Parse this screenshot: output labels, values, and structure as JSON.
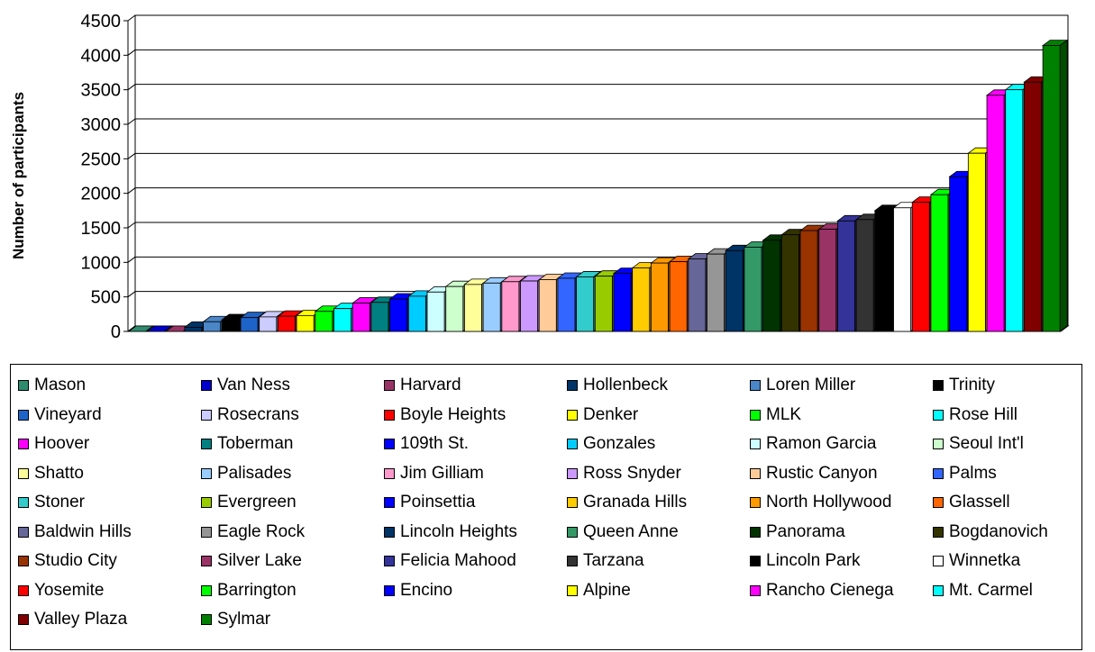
{
  "chart_data": {
    "type": "bar",
    "ylabel": "Number of participants",
    "xlabel": "",
    "ylim": [
      0,
      4500
    ],
    "yticks": [
      0,
      500,
      1000,
      1500,
      2000,
      2500,
      3000,
      3500,
      4000,
      4500
    ],
    "grid": true,
    "legend_position": "bottom",
    "series": [
      {
        "name": "Mason",
        "value": 0,
        "color": "#2E8B6E"
      },
      {
        "name": "Van Ness",
        "value": 0,
        "color": "#0000CC"
      },
      {
        "name": "Harvard",
        "value": 0,
        "color": "#993366"
      },
      {
        "name": "Hollenbeck",
        "value": 60,
        "color": "#003366"
      },
      {
        "name": "Loren Miller",
        "value": 140,
        "color": "#4A86C8"
      },
      {
        "name": "Trinity",
        "value": 170,
        "color": "#000000"
      },
      {
        "name": "Vineyard",
        "value": 200,
        "color": "#1E64C8"
      },
      {
        "name": "Rosecrans",
        "value": 210,
        "color": "#CCCCFF"
      },
      {
        "name": "Boyle Heights",
        "value": 220,
        "color": "#FF0000"
      },
      {
        "name": "Denker",
        "value": 230,
        "color": "#FFFF00"
      },
      {
        "name": "MLK",
        "value": 290,
        "color": "#00FF00"
      },
      {
        "name": "Rose Hill",
        "value": 330,
        "color": "#00FFFF"
      },
      {
        "name": "Hoover",
        "value": 410,
        "color": "#FF00FF"
      },
      {
        "name": "Toberman",
        "value": 420,
        "color": "#008080"
      },
      {
        "name": "109th St.",
        "value": 470,
        "color": "#0000FF"
      },
      {
        "name": "Gonzales",
        "value": 510,
        "color": "#00CCFF"
      },
      {
        "name": "Ramon Garcia",
        "value": 570,
        "color": "#CCFFFF"
      },
      {
        "name": "Seoul Int'l",
        "value": 650,
        "color": "#CCFFCC"
      },
      {
        "name": "Shatto",
        "value": 680,
        "color": "#FFFF99"
      },
      {
        "name": "Palisades",
        "value": 700,
        "color": "#99CCFF"
      },
      {
        "name": "Jim Gilliam",
        "value": 720,
        "color": "#FF99CC"
      },
      {
        "name": "Ross Snyder",
        "value": 730,
        "color": "#CC99FF"
      },
      {
        "name": "Rustic Canyon",
        "value": 750,
        "color": "#FFCC99"
      },
      {
        "name": "Palms",
        "value": 770,
        "color": "#3366FF"
      },
      {
        "name": "Stoner",
        "value": 790,
        "color": "#33CCCC"
      },
      {
        "name": "Evergreen",
        "value": 800,
        "color": "#99CC00"
      },
      {
        "name": "Poinsettia",
        "value": 840,
        "color": "#0000FF"
      },
      {
        "name": "Granada Hills",
        "value": 920,
        "color": "#FFCC00"
      },
      {
        "name": "North Hollywood",
        "value": 990,
        "color": "#FF9900"
      },
      {
        "name": "Glassell",
        "value": 1010,
        "color": "#FF6600"
      },
      {
        "name": "Baldwin Hills",
        "value": 1050,
        "color": "#666699"
      },
      {
        "name": "Eagle Rock",
        "value": 1120,
        "color": "#969696"
      },
      {
        "name": "Lincoln Heights",
        "value": 1170,
        "color": "#003366"
      },
      {
        "name": "Queen Anne",
        "value": 1220,
        "color": "#339966"
      },
      {
        "name": "Panorama",
        "value": 1320,
        "color": "#003300"
      },
      {
        "name": "Bogdanovich",
        "value": 1400,
        "color": "#333300"
      },
      {
        "name": "Studio City",
        "value": 1460,
        "color": "#993300"
      },
      {
        "name": "Silver Lake",
        "value": 1480,
        "color": "#993366"
      },
      {
        "name": "Felicia Mahood",
        "value": 1600,
        "color": "#333399"
      },
      {
        "name": "Tarzana",
        "value": 1620,
        "color": "#333333"
      },
      {
        "name": "Lincoln Park",
        "value": 1750,
        "color": "#000000"
      },
      {
        "name": "Winnetka",
        "value": 1790,
        "color": "#FFFFFF"
      },
      {
        "name": "Yosemite",
        "value": 1870,
        "color": "#FF0000"
      },
      {
        "name": "Barrington",
        "value": 1980,
        "color": "#00FF00"
      },
      {
        "name": "Encino",
        "value": 2240,
        "color": "#0000FF"
      },
      {
        "name": "Alpine",
        "value": 2580,
        "color": "#FFFF00"
      },
      {
        "name": "Rancho Cienega",
        "value": 3420,
        "color": "#FF00FF"
      },
      {
        "name": "Mt. Carmel",
        "value": 3500,
        "color": "#00FFFF"
      },
      {
        "name": "Valley Plaza",
        "value": 3610,
        "color": "#800000"
      },
      {
        "name": "Sylmar",
        "value": 4140,
        "color": "#008000"
      }
    ]
  }
}
